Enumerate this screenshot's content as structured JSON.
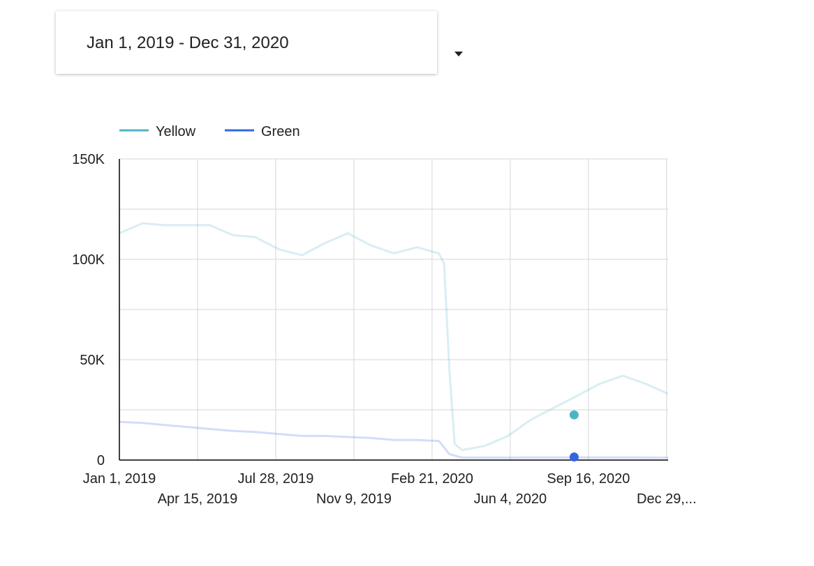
{
  "date_range": {
    "label": "Jan 1, 2019 - Dec 31, 2020",
    "dropdown_icon": "caret-down-icon"
  },
  "chart_data": {
    "type": "line",
    "x_range": [
      "2019-01-01",
      "2020-12-31"
    ],
    "ylim": [
      0,
      150000
    ],
    "grid": true,
    "legend_position": "top-left",
    "y_ticks": [
      {
        "value": 0,
        "label": "0"
      },
      {
        "value": 50000,
        "label": "50K"
      },
      {
        "value": 100000,
        "label": "100K"
      },
      {
        "value": 150000,
        "label": "150K"
      }
    ],
    "x_ticks": [
      {
        "date": "2019-01-01",
        "label": "Jan 1, 2019",
        "row": 0
      },
      {
        "date": "2019-04-15",
        "label": "Apr 15, 2019",
        "row": 1
      },
      {
        "date": "2019-07-28",
        "label": "Jul 28, 2019",
        "row": 0
      },
      {
        "date": "2019-11-09",
        "label": "Nov 9, 2019",
        "row": 1
      },
      {
        "date": "2020-02-21",
        "label": "Feb 21, 2020",
        "row": 0
      },
      {
        "date": "2020-06-04",
        "label": "Jun 4, 2020",
        "row": 1
      },
      {
        "date": "2020-09-16",
        "label": "Sep 16, 2020",
        "row": 0
      },
      {
        "date": "2020-12-29",
        "label": "Dec 29,...",
        "row": 1
      }
    ],
    "series": [
      {
        "name": "Yellow",
        "color": "#4fb3c8",
        "x": [
          "2019-01-01",
          "2019-02-01",
          "2019-03-01",
          "2019-04-01",
          "2019-05-01",
          "2019-06-01",
          "2019-07-01",
          "2019-08-01",
          "2019-09-01",
          "2019-10-01",
          "2019-11-01",
          "2019-12-01",
          "2020-01-01",
          "2020-02-01",
          "2020-03-01",
          "2020-03-08",
          "2020-03-15",
          "2020-03-22",
          "2020-04-01",
          "2020-05-01",
          "2020-06-01",
          "2020-07-01",
          "2020-08-01",
          "2020-09-01",
          "2020-10-01",
          "2020-11-01",
          "2020-12-01",
          "2020-12-31"
        ],
        "values": [
          113000,
          118000,
          117000,
          117000,
          117000,
          112000,
          111000,
          105000,
          102000,
          108000,
          113000,
          107000,
          103000,
          106000,
          103000,
          98000,
          45000,
          8000,
          5000,
          7000,
          12000,
          20000,
          26000,
          32000,
          38000,
          42000,
          38000,
          33000
        ]
      },
      {
        "name": "Green",
        "color": "#3366e0",
        "x": [
          "2019-01-01",
          "2019-02-01",
          "2019-03-01",
          "2019-04-01",
          "2019-05-01",
          "2019-06-01",
          "2019-07-01",
          "2019-08-01",
          "2019-09-01",
          "2019-10-01",
          "2019-11-01",
          "2019-12-01",
          "2020-01-01",
          "2020-02-01",
          "2020-03-01",
          "2020-03-15",
          "2020-04-01",
          "2020-06-01",
          "2020-09-01",
          "2020-12-31"
        ],
        "values": [
          19000,
          18500,
          17500,
          16500,
          15500,
          14500,
          14000,
          13000,
          12000,
          12000,
          11500,
          11000,
          10000,
          10000,
          9500,
          3000,
          1200,
          1200,
          1300,
          1200
        ]
      }
    ],
    "highlight_date": "2020-08-28",
    "highlight_values": [
      22500,
      1500
    ]
  }
}
